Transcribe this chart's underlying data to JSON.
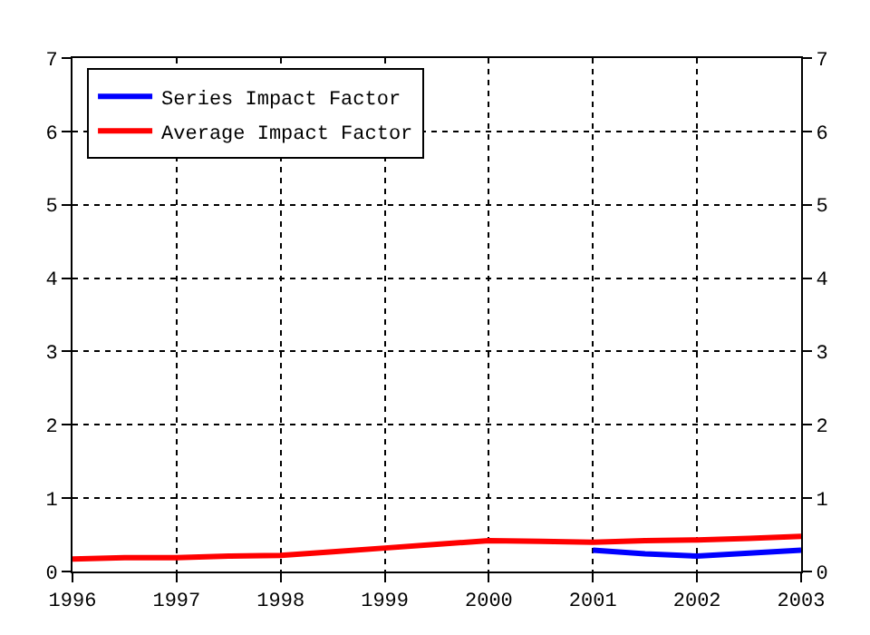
{
  "chart_data": {
    "type": "line",
    "x": [
      1996,
      1996.5,
      1997,
      1997.5,
      1998,
      1998.5,
      1999,
      1999.5,
      2000,
      2000.5,
      2001,
      2001.5,
      2002,
      2002.5,
      2003
    ],
    "series": [
      {
        "name": "Series Impact Factor",
        "color": "#0000ff",
        "x": [
          2001,
          2001.5,
          2002,
          2002.5,
          2003
        ],
        "values": [
          0.29,
          0.24,
          0.21,
          0.25,
          0.29
        ]
      },
      {
        "name": "Average Impact Factor",
        "color": "#ff0000",
        "values": [
          0.17,
          0.19,
          0.19,
          0.21,
          0.22,
          0.27,
          0.32,
          0.37,
          0.42,
          0.41,
          0.4,
          0.42,
          0.43,
          0.45,
          0.48
        ]
      }
    ],
    "xlim": [
      1996,
      2003
    ],
    "xticks": [
      1996,
      1997,
      1998,
      1999,
      2000,
      2001,
      2002,
      2003
    ],
    "ylim": [
      0,
      7
    ],
    "yticks": [
      0,
      1,
      2,
      3,
      4,
      5,
      6,
      7
    ],
    "y2lim": [
      0,
      7
    ],
    "y2ticks": [
      0,
      1,
      2,
      3,
      4,
      5,
      6,
      7
    ],
    "grid": true,
    "legend": "top left",
    "line_style": "solid",
    "marker": "none"
  }
}
